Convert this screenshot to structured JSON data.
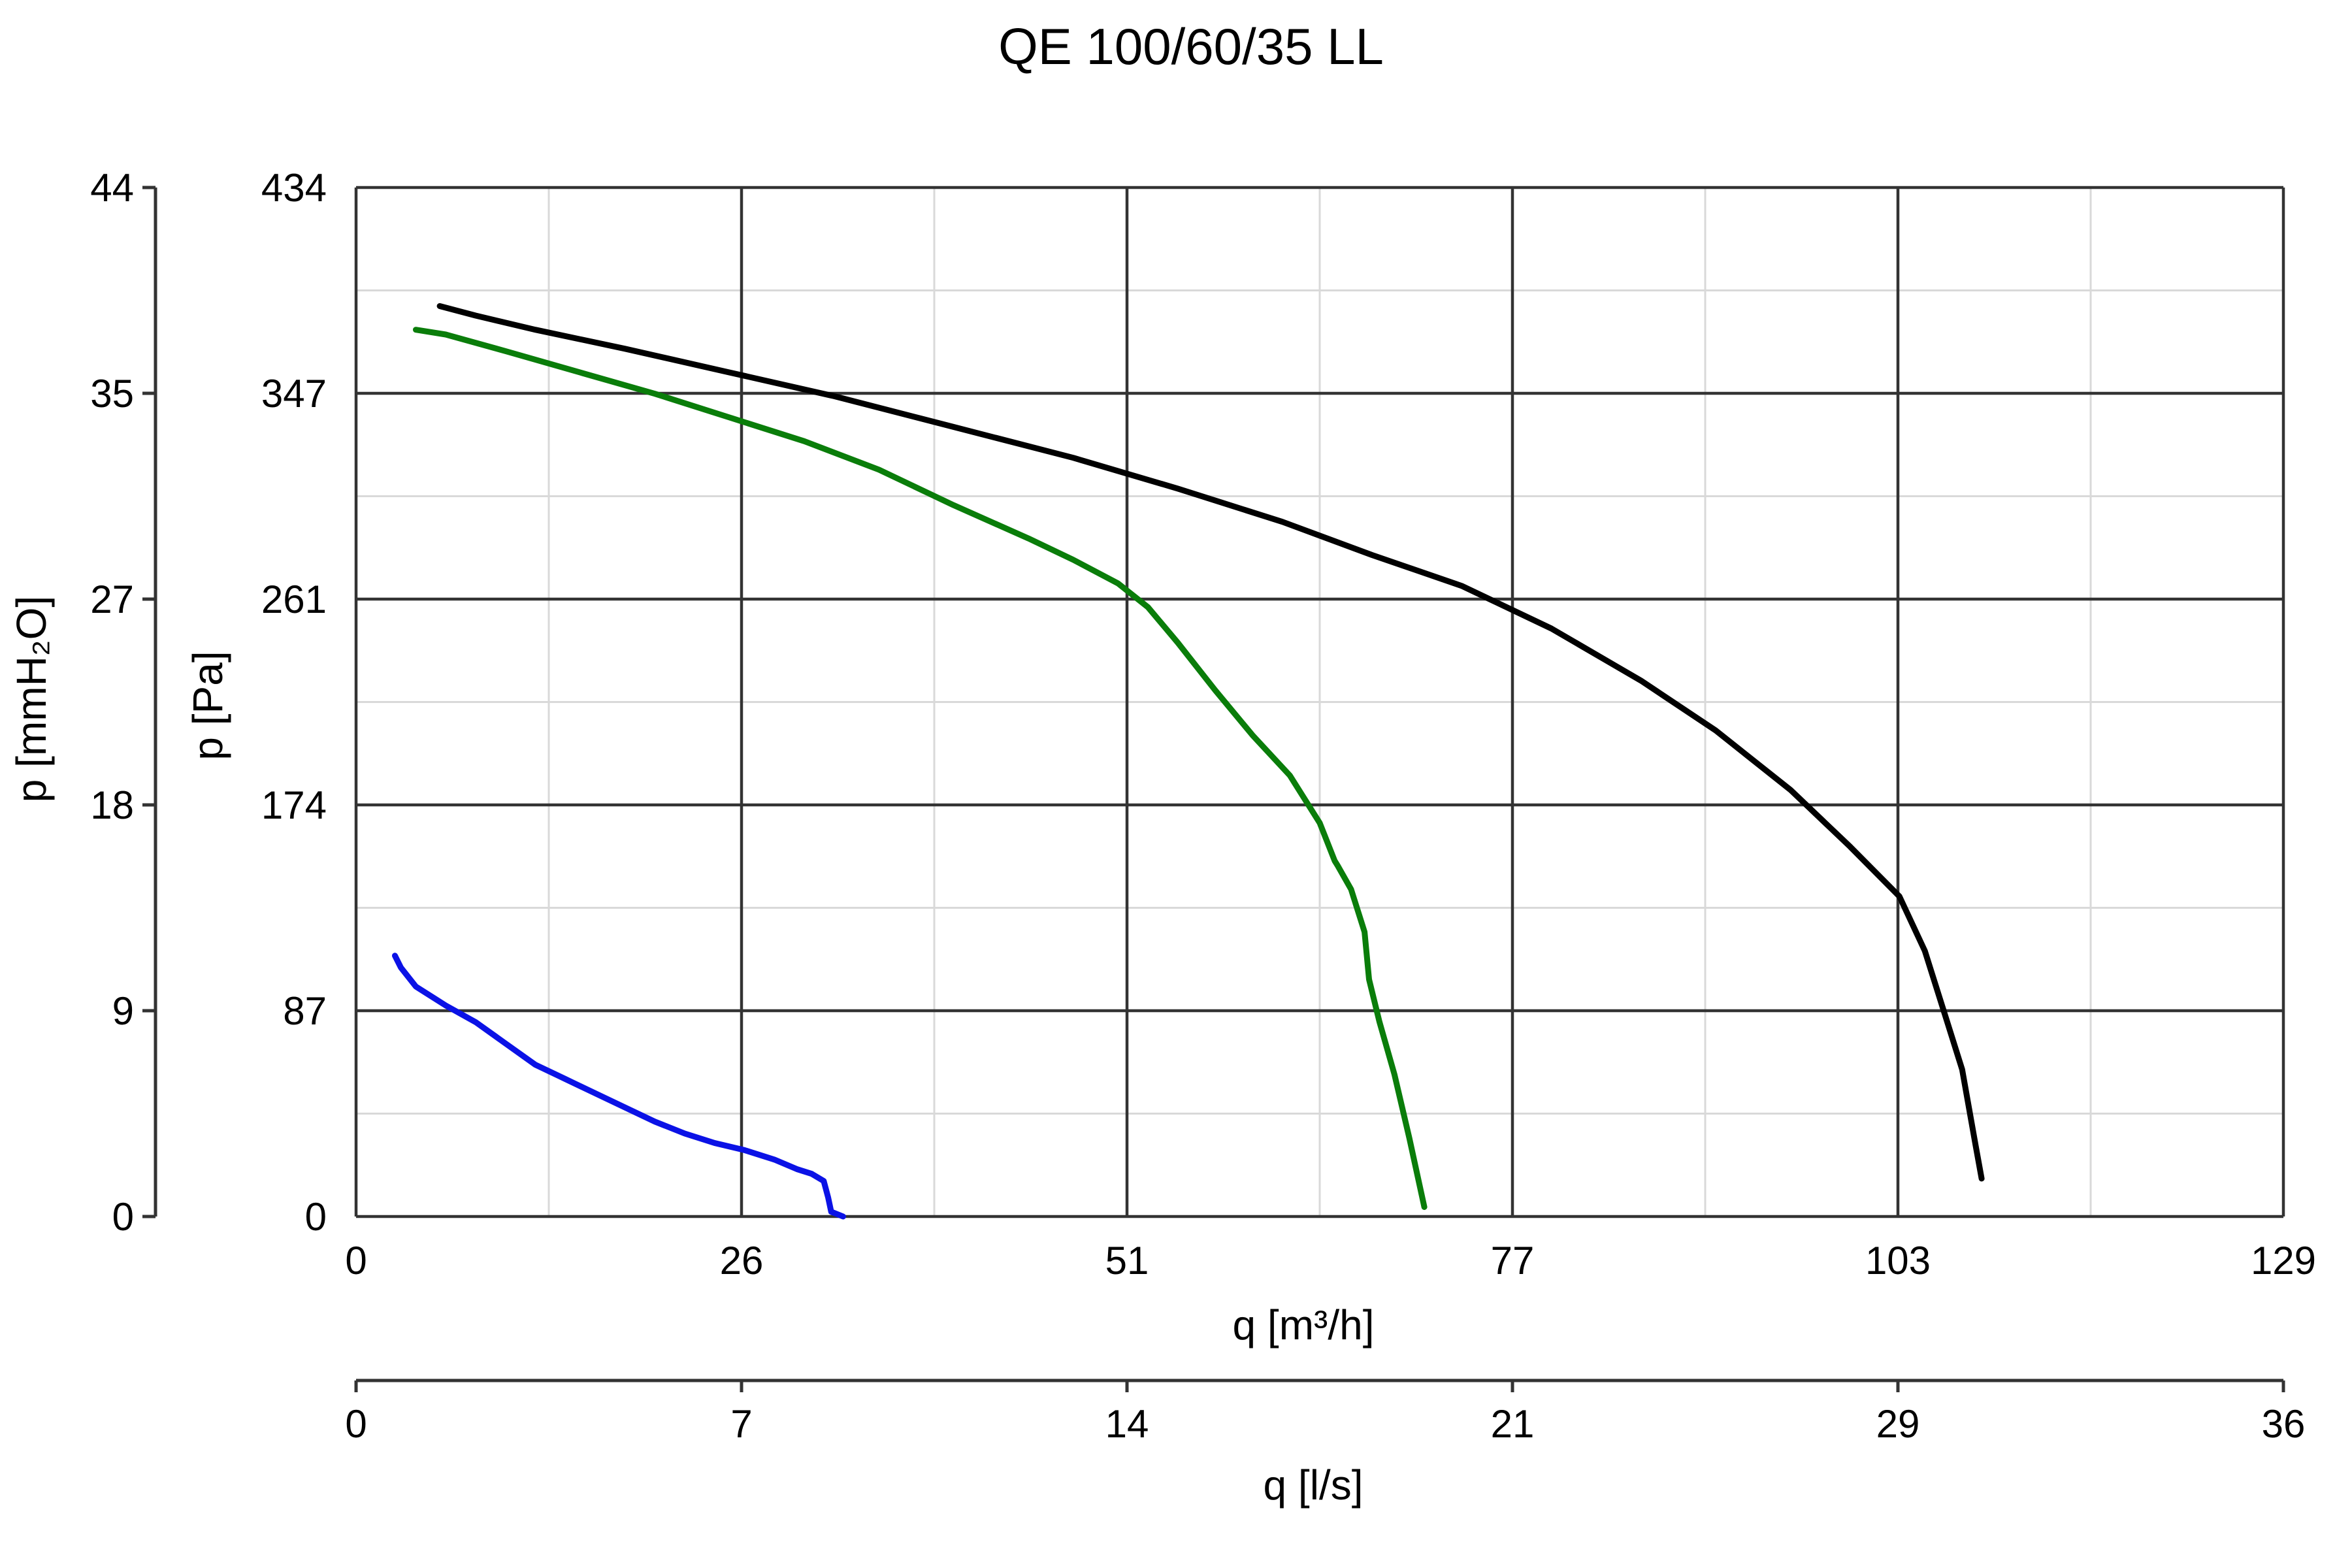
{
  "chart_data": {
    "type": "line",
    "title": "QE 100/60/35 LL",
    "xlabel": "q [m³/h]",
    "ylabel": "p [Pa]",
    "x_ticks": [
      "0",
      "26",
      "51",
      "77",
      "103",
      "129"
    ],
    "y_ticks": [
      "0",
      "87",
      "174",
      "261",
      "347",
      "434"
    ],
    "xlim": [
      0,
      129
    ],
    "ylim": [
      0,
      434
    ],
    "grid": true,
    "secondary_x": {
      "label": "q [l/s]",
      "ticks": [
        "0",
        "7",
        "14",
        "21",
        "29",
        "36"
      ]
    },
    "secondary_y": {
      "label": "p [mmH₂O]",
      "ticks": [
        "0",
        "9",
        "18",
        "27",
        "35",
        "44"
      ]
    },
    "series": [
      {
        "color": "#000000",
        "x": [
          5.6,
          8,
          12,
          18,
          25,
          32,
          40,
          48,
          55,
          62,
          68,
          74,
          80,
          86,
          91,
          96,
          100,
          103.3,
          105,
          106.5,
          107.5,
          108.4,
          108.8
        ],
        "y": [
          384,
          380,
          374,
          366,
          356,
          346,
          333,
          320,
          307,
          293,
          279,
          266,
          248,
          226,
          205,
          180,
          156,
          135,
          112,
          82,
          62,
          30,
          16
        ]
      },
      {
        "color": "#0a7d0a",
        "x": [
          4,
          6,
          10,
          15,
          20,
          25,
          30,
          35,
          40,
          45,
          48,
          51,
          53,
          55,
          57.5,
          60,
          62.5,
          64.5,
          65.5,
          65.7,
          66.6,
          67.5,
          67.8,
          68.5,
          69.5,
          70.5,
          71.5
        ],
        "y": [
          374,
          372,
          365,
          356,
          347,
          337,
          327,
          315,
          300,
          286,
          277,
          267,
          257,
          242,
          222,
          203,
          186,
          166,
          150,
          148,
          138,
          120,
          100,
          82,
          60,
          33,
          4
        ]
      },
      {
        "color": "#0b12e6",
        "x": [
          2.6,
          3,
          4,
          6,
          8,
          10,
          12,
          14,
          16,
          18,
          20,
          22,
          24,
          26,
          28,
          29.5,
          30.5,
          31.3,
          31.6,
          31.8,
          32.6
        ],
        "y": [
          110,
          105,
          97,
          89,
          82,
          73,
          64,
          58,
          52,
          46,
          40,
          35,
          31,
          28,
          24,
          20,
          18,
          15,
          8,
          2,
          0
        ]
      }
    ]
  }
}
